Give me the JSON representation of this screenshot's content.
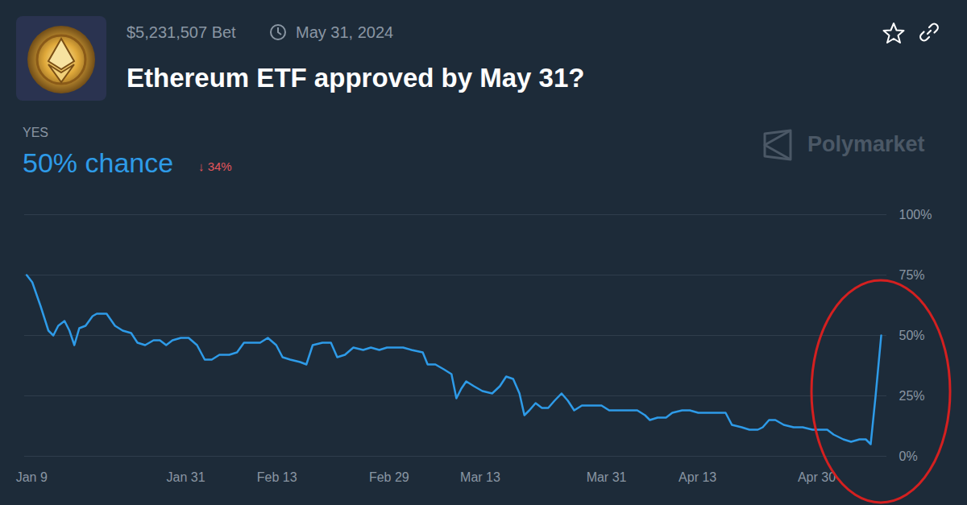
{
  "chart_data": {
    "type": "line",
    "title": "Ethereum ETF approved by May 31?",
    "annotations": {
      "volume": "$5,231,507 Bet",
      "end_date": "May 31, 2024",
      "chance": "50% chance",
      "change": "↓ 34%",
      "source": "Polymarket"
    },
    "x": [
      8.3,
      9.1,
      10.3,
      11.4,
      12.1,
      12.8,
      13.7,
      14.4,
      15.1,
      15.8,
      16.7,
      17.7,
      18.3,
      19.7,
      20.9,
      22.0,
      23.2,
      24.1,
      25.2,
      26.4,
      27.3,
      28.2,
      29.1,
      30.3,
      31.4,
      32.6,
      33.7,
      34.7,
      35.8,
      37.2,
      38.3,
      39.3,
      40.4,
      41.6,
      42.7,
      43.9,
      44.8,
      45.9,
      47.3,
      48.2,
      49.1,
      50.5,
      51.7,
      52.6,
      53.7,
      54.9,
      56.3,
      57.4,
      58.6,
      59.7,
      62.0,
      63.2,
      64.8,
      65.5,
      66.6,
      67.8,
      68.9,
      69.6,
      70.3,
      71.0,
      72.1,
      73.3,
      74.7,
      75.8,
      76.7,
      77.7,
      78.6,
      79.3,
      80.0,
      80.9,
      81.8,
      82.7,
      83.6,
      84.6,
      85.5,
      86.4,
      87.5,
      88.9,
      90.3,
      91.4,
      93.1,
      94.2,
      95.4,
      96.5,
      97.2,
      98.3,
      99.5,
      100.4,
      101.8,
      102.9,
      104.1,
      105.5,
      106.9,
      108.0,
      108.9,
      110.3,
      111.4,
      112.6,
      113.3,
      114.2,
      115.1,
      116.3,
      117.7,
      119.0,
      120.4,
      121.6,
      122.5,
      123.4,
      124.8,
      125.9,
      127.1,
      128.0,
      128.7,
      129.4,
      130.2
    ],
    "series": [
      {
        "name": "YES",
        "color": "#2e9be8",
        "values": [
          75,
          72,
          62,
          52,
          50,
          54,
          56,
          52,
          46,
          53,
          54,
          58,
          59,
          59,
          54,
          52,
          51,
          47,
          46,
          48,
          48,
          46,
          48,
          49,
          49,
          46,
          40,
          40,
          42,
          42,
          43,
          47,
          47,
          47,
          49,
          46,
          41,
          40,
          39,
          38,
          46,
          47,
          47,
          41,
          42,
          45,
          44,
          45,
          44,
          45,
          45,
          44,
          43,
          38,
          38,
          36,
          34,
          24,
          28,
          31,
          29,
          27,
          26,
          29,
          33,
          32,
          26,
          17,
          19,
          22,
          20,
          20,
          23,
          26,
          23,
          19,
          21,
          21,
          21,
          19,
          19,
          19,
          19,
          17,
          15,
          16,
          16,
          18,
          19,
          19,
          18,
          18,
          18,
          18,
          13,
          12,
          11,
          11,
          12,
          15,
          15,
          13,
          12,
          12,
          11,
          11,
          11,
          9,
          7,
          6,
          7,
          7,
          5,
          25,
          50
        ]
      }
    ],
    "xlim": [
      8,
      131
    ],
    "xticks": [
      {
        "value": 9,
        "label": "Jan 9"
      },
      {
        "value": 31,
        "label": "Jan 31"
      },
      {
        "value": 44,
        "label": "Feb 13"
      },
      {
        "value": 60,
        "label": "Feb 29"
      },
      {
        "value": 73,
        "label": "Mar 13"
      },
      {
        "value": 91,
        "label": "Mar 31"
      },
      {
        "value": 104,
        "label": "Apr 13"
      },
      {
        "value": 121,
        "label": "Apr 30"
      }
    ],
    "ylim": [
      0,
      100
    ],
    "yticks": [
      {
        "value": 0,
        "label": "0%"
      },
      {
        "value": 25,
        "label": "25%"
      },
      {
        "value": 50,
        "label": "50%"
      },
      {
        "value": 75,
        "label": "75%"
      },
      {
        "value": 100,
        "label": "100%"
      }
    ],
    "grid": true
  }
}
